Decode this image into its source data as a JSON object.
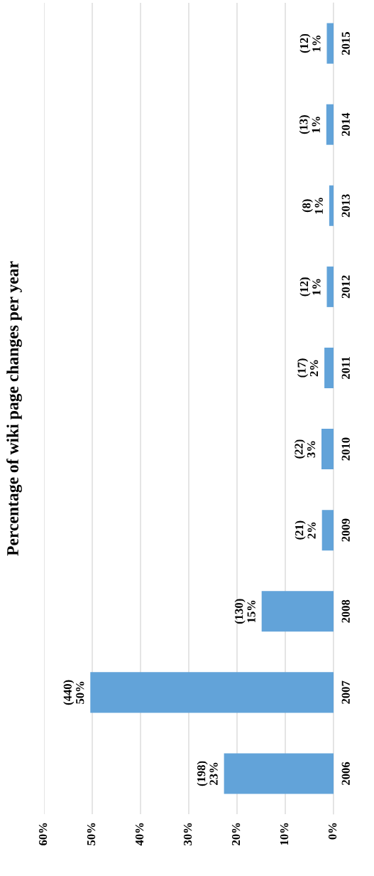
{
  "chart_data": {
    "type": "bar",
    "orientation": "horizontal",
    "title": "Percentage of wiki page changes per year",
    "categories": [
      "2015",
      "2014",
      "2013",
      "2012",
      "2011",
      "2010",
      "2009",
      "2008",
      "2007",
      "2006"
    ],
    "values": [
      1.4,
      1.5,
      0.9,
      1.4,
      1.9,
      2.5,
      2.4,
      14.9,
      50.4,
      22.7
    ],
    "value_labels": [
      "(12)\n1%",
      "(13)\n1%",
      "(8)\n1%",
      "(12)\n1%",
      "(17)\n2%",
      "(22)\n3%",
      "(21)\n2%",
      "(130)\n15%",
      "(440)\n50%",
      "(198)\n23%"
    ],
    "color": "#62a3d9",
    "xlim": [
      60,
      0
    ],
    "xticks": [
      {
        "value": 0,
        "label": "0%"
      },
      {
        "value": 10,
        "label": "10%"
      },
      {
        "value": 20,
        "label": "20%"
      },
      {
        "value": 30,
        "label": "30%"
      },
      {
        "value": 40,
        "label": "40%"
      },
      {
        "value": 50,
        "label": "50%"
      },
      {
        "value": 60,
        "label": "60%"
      }
    ],
    "grid": "x"
  }
}
